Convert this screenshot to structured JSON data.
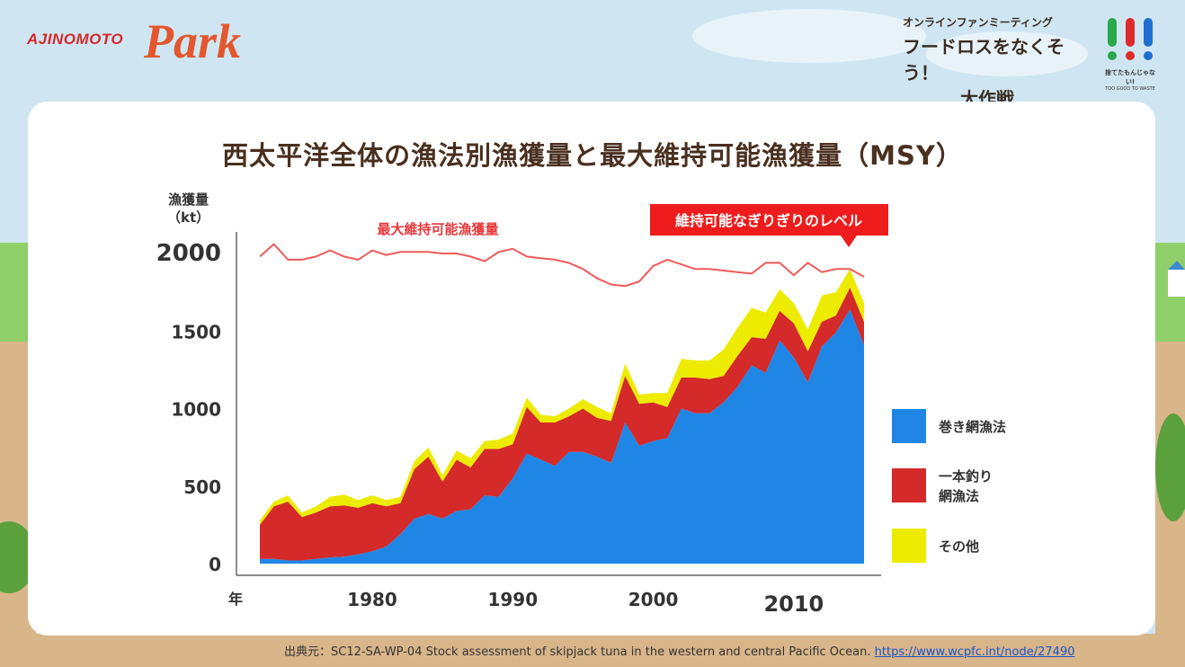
{
  "header": {
    "brand": "AJINOMOTO",
    "brand_park": "Park",
    "event_line1": "オンラインファンミーティング",
    "event_line2": "フードロスをなくそう！",
    "event_line3": "大作戦",
    "badge_text": "捨てたもんじゃない!",
    "badge_sub": "TOO GOOD TO WASTE"
  },
  "chart_data": {
    "type": "area",
    "title": "西太平洋全体の漁法別漁獲量と最大維持可能漁獲量（MSY）",
    "ylabel_line1": "漁獲量",
    "ylabel_line2": "（kt）",
    "xlabel": "年",
    "ylim": [
      0,
      2000
    ],
    "yticks": [
      "0",
      "500",
      "1000",
      "1500",
      "2000"
    ],
    "xticks": [
      "1980",
      "1990",
      "2000",
      "2010"
    ],
    "x": [
      1972,
      1973,
      1974,
      1975,
      1976,
      1977,
      1978,
      1979,
      1980,
      1981,
      1982,
      1983,
      1984,
      1985,
      1986,
      1987,
      1988,
      1989,
      1990,
      1991,
      1992,
      1993,
      1994,
      1995,
      1996,
      1997,
      1998,
      1999,
      2000,
      2001,
      2002,
      2003,
      2004,
      2005,
      2006,
      2007,
      2008,
      2009,
      2010,
      2011,
      2012,
      2013,
      2014,
      2015
    ],
    "series": [
      {
        "name": "巻き網漁法",
        "color": "#1f86e6",
        "values": [
          30,
          30,
          20,
          20,
          30,
          40,
          45,
          60,
          80,
          110,
          190,
          290,
          320,
          290,
          340,
          350,
          440,
          430,
          550,
          710,
          670,
          630,
          720,
          720,
          690,
          650,
          910,
          760,
          790,
          810,
          1000,
          970,
          970,
          1040,
          1140,
          1280,
          1230,
          1440,
          1330,
          1170,
          1400,
          1490,
          1640,
          1410
        ]
      },
      {
        "name": "一本釣り網漁法",
        "color": "#d42a2a",
        "values": [
          220,
          340,
          380,
          280,
          300,
          330,
          330,
          300,
          310,
          260,
          200,
          320,
          370,
          240,
          330,
          270,
          300,
          310,
          220,
          300,
          240,
          280,
          230,
          280,
          250,
          270,
          300,
          270,
          250,
          200,
          200,
          230,
          220,
          170,
          200,
          180,
          220,
          190,
          220,
          200,
          160,
          110,
          140,
          150
        ]
      },
      {
        "name": "その他",
        "color": "#eceb00",
        "values": [
          30,
          30,
          40,
          30,
          40,
          60,
          70,
          50,
          50,
          40,
          40,
          50,
          60,
          40,
          60,
          60,
          50,
          60,
          70,
          60,
          50,
          40,
          50,
          60,
          70,
          50,
          80,
          60,
          60,
          90,
          120,
          110,
          120,
          170,
          180,
          190,
          170,
          140,
          130,
          140,
          170,
          150,
          120,
          120
        ]
      }
    ],
    "msy": {
      "name": "最大維持可能漁獲量",
      "color": "#f05a5a",
      "values": [
        1980,
        2060,
        1960,
        1960,
        1980,
        2020,
        1980,
        1960,
        2020,
        1990,
        2010,
        2010,
        2010,
        2000,
        2000,
        1980,
        1950,
        2010,
        2030,
        1980,
        1970,
        1960,
        1940,
        1900,
        1840,
        1800,
        1790,
        1820,
        1920,
        1960,
        1930,
        1900,
        1900,
        1890,
        1880,
        1870,
        1940,
        1940,
        1860,
        1940,
        1880,
        1900,
        1900,
        1850
      ]
    },
    "annotation": "維持可能なぎりぎりのレベル",
    "msy_label": "最大維持可能漁獲量",
    "legend": [
      "巻き網漁法",
      "一本釣り\n網漁法",
      "その他"
    ],
    "legend_position": "right"
  },
  "source": {
    "prefix": "出典元：SC12-SA-WP-04 Stock assessment of skipjack tuna in the western and central Pacific Ocean.",
    "link": "https://www.wcpfc.int/node/27490"
  }
}
